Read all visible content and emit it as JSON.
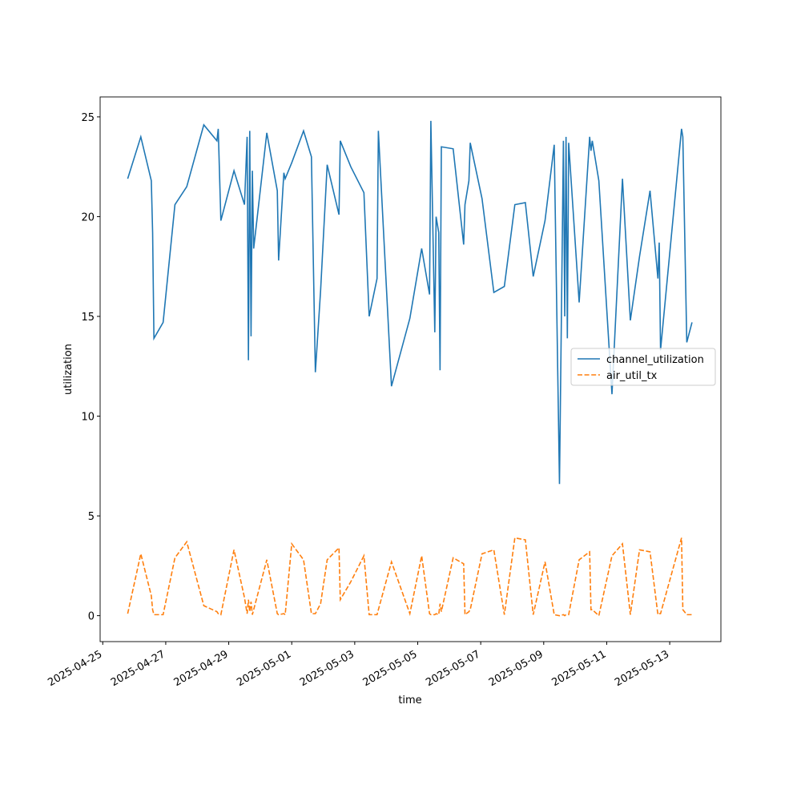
{
  "chart_data": {
    "type": "line",
    "x_label": "time",
    "y_label": "utilization",
    "x": [
      "2025-04-25T19:00",
      "2025-04-26T05:00",
      "2025-04-26T13:00",
      "2025-04-26T14:00",
      "2025-04-26T15:00",
      "2025-04-26T22:00",
      "2025-04-27T07:00",
      "2025-04-27T16:00",
      "2025-04-28T05:00",
      "2025-04-28T15:00",
      "2025-04-28T16:00",
      "2025-04-28T18:00",
      "2025-04-29T04:00",
      "2025-04-29T12:00",
      "2025-04-29T14:00",
      "2025-04-29T15:00",
      "2025-04-29T16:00",
      "2025-04-29T17:00",
      "2025-04-29T18:00",
      "2025-04-29T19:00",
      "2025-04-30T05:00",
      "2025-04-30T13:00",
      "2025-04-30T14:00",
      "2025-04-30T18:00",
      "2025-04-30T19:00",
      "2025-05-01T00:00",
      "2025-05-01T09:00",
      "2025-05-01T15:00",
      "2025-05-01T18:00",
      "2025-05-01T22:00",
      "2025-05-02T03:00",
      "2025-05-02T12:00",
      "2025-05-02T13:00",
      "2025-05-02T21:00",
      "2025-05-03T07:00",
      "2025-05-03T11:00",
      "2025-05-03T17:00",
      "2025-05-03T18:00",
      "2025-05-04T04:00",
      "2025-05-04T18:00",
      "2025-05-05T03:00",
      "2025-05-05T09:00",
      "2025-05-05T10:00",
      "2025-05-05T13:00",
      "2025-05-05T14:00",
      "2025-05-05T16:00",
      "2025-05-05T17:00",
      "2025-05-05T18:00",
      "2025-05-06T03:00",
      "2025-05-06T11:00",
      "2025-05-06T12:00",
      "2025-05-06T15:00",
      "2025-05-06T16:00",
      "2025-05-07T01:00",
      "2025-05-07T10:00",
      "2025-05-07T18:00",
      "2025-05-08T02:00",
      "2025-05-08T10:00",
      "2025-05-08T16:00",
      "2025-05-09T01:00",
      "2025-05-09T08:00",
      "2025-05-09T12:00",
      "2025-05-09T15:00",
      "2025-05-09T16:00",
      "2025-05-09T17:00",
      "2025-05-09T18:00",
      "2025-05-09T19:00",
      "2025-05-10T03:00",
      "2025-05-10T11:00",
      "2025-05-10T12:00",
      "2025-05-10T13:00",
      "2025-05-10T18:00",
      "2025-05-11T04:00",
      "2025-05-11T12:00",
      "2025-05-11T18:00",
      "2025-05-12T01:00",
      "2025-05-12T09:00",
      "2025-05-12T15:00",
      "2025-05-12T16:00",
      "2025-05-12T17:00",
      "2025-05-13T09:00",
      "2025-05-13T10:00",
      "2025-05-13T13:00",
      "2025-05-13T17:00"
    ],
    "series": [
      {
        "name": "channel_utilization",
        "color": "#1f77b4",
        "linestyle": "solid",
        "values": [
          21.9,
          24.0,
          21.8,
          19.2,
          13.9,
          14.7,
          20.6,
          21.5,
          24.6,
          23.8,
          24.4,
          19.8,
          22.3,
          20.6,
          24.0,
          12.8,
          24.3,
          14.0,
          22.3,
          18.4,
          24.2,
          21.3,
          17.8,
          22.2,
          21.9,
          22.7,
          24.3,
          23.0,
          12.2,
          16.3,
          22.6,
          20.1,
          23.8,
          22.5,
          21.2,
          15.0,
          16.9,
          24.3,
          11.5,
          14.9,
          18.4,
          16.1,
          24.8,
          14.2,
          20.0,
          19.2,
          12.3,
          23.5,
          23.4,
          18.6,
          20.6,
          21.8,
          23.7,
          20.9,
          16.2,
          16.5,
          20.6,
          20.7,
          17.0,
          19.8,
          23.6,
          6.6,
          23.8,
          15.0,
          24.0,
          13.9,
          23.7,
          15.7,
          24.0,
          23.3,
          23.8,
          21.8,
          11.1,
          21.9,
          14.8,
          18.0,
          21.3,
          16.9,
          18.7,
          13.3,
          24.4,
          24.0,
          13.7,
          14.7
        ]
      },
      {
        "name": "air_util_tx",
        "color": "#ff7f0e",
        "linestyle": "dashed",
        "values": [
          0.1,
          3.1,
          1.0,
          0.3,
          0.05,
          0.05,
          2.9,
          3.7,
          0.5,
          0.2,
          0.1,
          0.05,
          3.3,
          0.9,
          0.1,
          0.8,
          0.2,
          0.7,
          0.05,
          0.3,
          2.8,
          0.1,
          0.05,
          0.1,
          0.05,
          3.6,
          2.8,
          0.1,
          0.1,
          0.6,
          2.8,
          3.4,
          0.8,
          1.7,
          3.0,
          0.05,
          0.05,
          0.3,
          2.7,
          0.1,
          3.0,
          0.1,
          0.05,
          0.05,
          0.1,
          0.05,
          0.6,
          0.2,
          2.9,
          2.6,
          0.05,
          0.2,
          0.3,
          3.1,
          3.3,
          0.05,
          3.9,
          3.8,
          0.05,
          2.7,
          0.05,
          0.0,
          0.05,
          0.0,
          0.05,
          0.05,
          0.05,
          2.8,
          3.2,
          0.3,
          0.3,
          0.0,
          3.0,
          3.6,
          0.05,
          3.3,
          3.2,
          0.05,
          0.1,
          0.1,
          3.9,
          0.3,
          0.05,
          0.05
        ]
      }
    ],
    "xlim": [
      "2025-04-24T22:00",
      "2025-05-14T15:00"
    ],
    "xticks": [
      "2025-04-25",
      "2025-04-27",
      "2025-04-29",
      "2025-05-01",
      "2025-05-03",
      "2025-05-05",
      "2025-05-07",
      "2025-05-09",
      "2025-05-11",
      "2025-05-13"
    ],
    "ylim": [
      -1.3,
      26.0
    ],
    "yticks": [
      0,
      5,
      10,
      15,
      20,
      25
    ],
    "legend": "center right"
  }
}
